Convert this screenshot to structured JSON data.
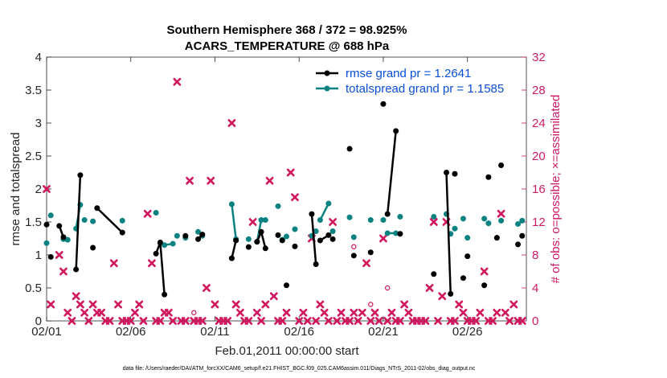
{
  "chart_data": {
    "type": "line",
    "title": "Southern Hemisphere 368 / 372 = 98.925%",
    "subtitle": "ACARS_TEMPERATURE @ 688 hPa",
    "xlabel": "Feb.01,2011 00:00:00 start",
    "ylabel": "rmse and totalspread",
    "y2label": "# of obs: o=possible; ×=assimilated",
    "footnote": "data file: /Users/raeder/DAI/ATM_forcXX/CAM6_setup/f.e21.FHIST_BGC.f09_025.CAM6assim.011/Diags_NTrS_2011-02/obs_diag_output.nc",
    "xlim": [
      0,
      28.5
    ],
    "ylim": [
      0,
      4
    ],
    "y2lim": [
      0,
      32
    ],
    "x_ticks": [
      0,
      5,
      10,
      15,
      20,
      25
    ],
    "x_tick_labels": [
      "02/01",
      "02/06",
      "02/11",
      "02/16",
      "02/21",
      "02/26"
    ],
    "y_ticks": [
      0,
      0.5,
      1,
      1.5,
      2,
      2.5,
      3,
      3.5,
      4
    ],
    "y_tick_labels": [
      "0",
      "0.5",
      "1",
      "1.5",
      "2",
      "2.5",
      "3",
      "3.5",
      "4"
    ],
    "y2_ticks": [
      0,
      4,
      8,
      12,
      16,
      20,
      24,
      28,
      32
    ],
    "y2_tick_labels": [
      "0",
      "4",
      "8",
      "12",
      "16",
      "20",
      "24",
      "28",
      "32"
    ],
    "legend_placement": "top-right",
    "grid": false,
    "colors": {
      "rmse": "#000000",
      "spread": "#0b8282",
      "obs": "#d1185e",
      "legend_text": "#0a4fd6",
      "right_axis": "#cc1a66"
    },
    "series": [
      {
        "name": "rmse grand pr = 1.2641",
        "x": [
          0.0,
          0.25,
          0.75,
          1.0,
          1.75,
          2.0,
          2.75,
          3.0,
          4.5,
          6.5,
          6.75,
          7.0,
          8.25,
          9.0,
          9.25,
          11.0,
          11.25,
          12.0,
          12.5,
          12.75,
          13.0,
          13.75,
          14.0,
          14.25,
          14.75,
          15.75,
          16.0,
          16.25,
          16.75,
          17.0,
          18.0,
          18.25,
          19.25,
          20.0,
          20.25,
          20.75,
          21.0,
          23.0,
          23.75,
          24.0,
          24.25,
          24.75,
          25.0,
          26.0,
          26.25,
          26.75,
          27.0,
          28.0,
          28.25
        ],
        "y": [
          1.46,
          0.97,
          1.44,
          1.27,
          0.78,
          2.21,
          1.11,
          1.71,
          1.34,
          1.02,
          1.19,
          0.4,
          1.29,
          1.24,
          1.31,
          0.95,
          1.22,
          1.12,
          1.2,
          1.35,
          1.1,
          1.3,
          1.22,
          0.54,
          1.13,
          1.62,
          0.86,
          1.22,
          1.3,
          1.24,
          2.61,
          0.99,
          1.04,
          3.29,
          1.62,
          2.88,
          1.32,
          0.71,
          2.25,
          0.41,
          2.23,
          0.65,
          0.98,
          0.54,
          2.18,
          1.26,
          2.36,
          1.16,
          1.29
        ],
        "segments": [
          [
            0
          ],
          [
            1
          ],
          [
            2,
            3
          ],
          [
            4,
            5
          ],
          [
            6
          ],
          [
            7,
            8
          ],
          [
            9,
            10,
            11
          ],
          [
            12
          ],
          [
            13,
            14
          ],
          [
            15,
            16
          ],
          [
            17
          ],
          [
            18,
            19,
            20
          ],
          [
            21
          ],
          [
            22
          ],
          [
            23
          ],
          [
            24
          ],
          [
            25,
            26
          ],
          [
            27,
            28
          ],
          [
            29
          ],
          [
            30
          ],
          [
            31
          ],
          [
            32
          ],
          [
            33
          ],
          [
            34,
            35
          ],
          [
            36
          ],
          [
            37
          ],
          [
            38,
            39
          ],
          [
            40
          ],
          [
            41
          ],
          [
            42
          ],
          [
            43
          ],
          [
            44
          ],
          [
            45
          ],
          [
            46
          ],
          [
            47
          ],
          [
            48
          ]
        ]
      },
      {
        "name": "totalspread grand pr = 1.1585",
        "x": [
          0.0,
          0.25,
          1.0,
          1.25,
          1.75,
          2.0,
          2.25,
          2.75,
          4.5,
          6.5,
          6.75,
          7.0,
          7.5,
          7.75,
          8.25,
          9.0,
          9.25,
          11.0,
          11.25,
          12.0,
          12.5,
          12.75,
          13.0,
          13.75,
          14.0,
          14.25,
          14.75,
          15.75,
          16.0,
          16.25,
          16.75,
          17.0,
          18.0,
          18.25,
          19.25,
          20.0,
          20.25,
          20.75,
          21.0,
          23.0,
          23.75,
          24.0,
          24.25,
          24.75,
          25.0,
          26.0,
          26.25,
          26.75,
          27.0,
          28.0,
          28.25
        ],
        "y": [
          1.18,
          1.6,
          1.24,
          1.23,
          1.4,
          1.76,
          1.53,
          1.51,
          1.52,
          1.64,
          1.18,
          1.15,
          1.17,
          1.29,
          1.26,
          1.35,
          1.29,
          1.77,
          1.24,
          1.24,
          1.2,
          1.53,
          1.53,
          1.74,
          1.23,
          1.28,
          1.39,
          1.29,
          1.36,
          1.53,
          1.78,
          1.36,
          1.57,
          1.27,
          1.53,
          1.53,
          1.33,
          1.33,
          1.58,
          1.58,
          1.62,
          1.32,
          1.4,
          1.55,
          1.26,
          1.55,
          1.48,
          1.26,
          1.52,
          1.47,
          1.52
        ],
        "segments": [
          [
            0
          ],
          [
            1
          ],
          [
            2,
            3
          ],
          [
            4,
            5
          ],
          [
            6
          ],
          [
            7
          ],
          [
            8
          ],
          [
            9
          ],
          [
            10,
            11,
            12
          ],
          [
            13
          ],
          [
            14
          ],
          [
            15
          ],
          [
            16
          ],
          [
            17,
            18
          ],
          [
            19
          ],
          [
            20,
            21
          ],
          [
            22
          ],
          [
            23
          ],
          [
            24
          ],
          [
            25
          ],
          [
            26
          ],
          [
            27,
            28
          ],
          [
            29,
            30
          ],
          [
            31
          ],
          [
            32
          ],
          [
            33
          ],
          [
            34
          ],
          [
            35
          ],
          [
            36,
            37
          ],
          [
            38
          ],
          [
            39
          ],
          [
            40
          ],
          [
            41
          ],
          [
            42
          ],
          [
            43
          ],
          [
            44
          ],
          [
            45
          ],
          [
            46
          ],
          [
            47
          ],
          [
            48
          ],
          [
            49
          ],
          [
            50
          ]
        ]
      },
      {
        "name": "obs assimilated",
        "axis": "right",
        "marker": "x",
        "x": [
          0.0,
          0.25,
          0.75,
          1.0,
          1.25,
          1.5,
          1.75,
          2.0,
          2.25,
          2.5,
          2.75,
          3.0,
          3.25,
          3.5,
          3.75,
          4.0,
          4.25,
          4.5,
          4.75,
          5.0,
          5.25,
          5.5,
          5.75,
          6.0,
          6.25,
          6.5,
          6.75,
          7.0,
          7.25,
          7.5,
          7.75,
          8.0,
          8.25,
          8.5,
          8.75,
          9.0,
          9.25,
          9.5,
          9.75,
          10.0,
          10.25,
          10.5,
          10.75,
          11.0,
          11.25,
          11.5,
          11.75,
          12.0,
          12.25,
          12.5,
          12.75,
          13.0,
          13.25,
          13.5,
          13.75,
          14.0,
          14.25,
          14.5,
          14.75,
          15.0,
          15.25,
          15.5,
          15.75,
          16.0,
          16.25,
          16.5,
          16.75,
          17.0,
          17.25,
          17.5,
          17.75,
          18.0,
          18.25,
          18.5,
          18.75,
          19.0,
          19.25,
          19.5,
          19.75,
          20.0,
          20.25,
          20.5,
          20.75,
          21.0,
          21.25,
          21.5,
          21.75,
          22.0,
          22.25,
          22.5,
          22.75,
          23.0,
          23.25,
          23.5,
          23.75,
          24.0,
          24.25,
          24.5,
          24.75,
          25.0,
          25.25,
          25.5,
          25.75,
          26.0,
          26.25,
          26.5,
          26.75,
          27.0,
          27.25,
          27.5,
          27.75,
          28.0,
          28.25
        ],
        "y": [
          16,
          2,
          8,
          6,
          1,
          0,
          3,
          2,
          1,
          0,
          2,
          1,
          1,
          0,
          0,
          7,
          2,
          0,
          0,
          0,
          1,
          2,
          0,
          13,
          7,
          0,
          0,
          1,
          1,
          0,
          29,
          0,
          0,
          17,
          0,
          0,
          0,
          4,
          17,
          2,
          0,
          0,
          0,
          24,
          2,
          1,
          0,
          0,
          12,
          1,
          0,
          2,
          17,
          3,
          0,
          0,
          1,
          18,
          15,
          0,
          1,
          0,
          10,
          0,
          2,
          1,
          0,
          12,
          0,
          1,
          0,
          0,
          1,
          0,
          1,
          7,
          0,
          1,
          0,
          10,
          0,
          1,
          0,
          0,
          2,
          1,
          0,
          0,
          0,
          0,
          4,
          12,
          0,
          3,
          12,
          0,
          0,
          2,
          1,
          0,
          0,
          0,
          1,
          6,
          0,
          0,
          1,
          13,
          1,
          0,
          2,
          0,
          0
        ]
      },
      {
        "name": "obs possible",
        "axis": "right",
        "marker": "o",
        "x": [
          8.75,
          18.25,
          19.25,
          20.25
        ],
        "y": [
          1,
          9,
          2,
          4
        ]
      }
    ],
    "legend": [
      {
        "label": "rmse grand pr = 1.2641",
        "series": 0
      },
      {
        "label": "totalspread grand pr = 1.1585",
        "series": 1
      }
    ]
  }
}
